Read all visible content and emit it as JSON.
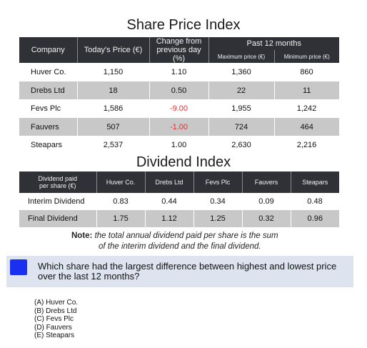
{
  "share_index": {
    "title": "Share Price Index",
    "headers": {
      "company": "Company",
      "today": "Today's Price (€)",
      "change_line1": "Change from",
      "change_line2": "previous day (%)",
      "past": "Past 12 months",
      "max": "Maximum price (€)",
      "min": "Minimum price (€)"
    },
    "rows": [
      {
        "company": "Huver Co.",
        "today": "1,150",
        "change": "1.10",
        "max": "1,360",
        "min": "860"
      },
      {
        "company": "Drebs Ltd",
        "today": "18",
        "change": "0.50",
        "max": "22",
        "min": "11"
      },
      {
        "company": "Fevs Plc",
        "today": "1,586",
        "change": "-9.00",
        "max": "1,955",
        "min": "1,242"
      },
      {
        "company": "Fauvers",
        "today": "507",
        "change": "-1.00",
        "max": "724",
        "min": "464"
      },
      {
        "company": "Steapars",
        "today": "2,537",
        "change": "1.00",
        "max": "2,630",
        "min": "2,216"
      }
    ]
  },
  "dividend_index": {
    "title": "Dividend Index",
    "headers": {
      "col0_line1": "Dividend paid",
      "col0_line2": "per share (€)",
      "companies": [
        "Huver Co.",
        "Drebs Ltd",
        "Fevs Plc",
        "Fauvers",
        "Steapars"
      ]
    },
    "rows": [
      {
        "label": "Interim Dividend",
        "values": [
          "0.83",
          "0.44",
          "0.34",
          "0.09",
          "0.48"
        ]
      },
      {
        "label": "Final Dividend",
        "values": [
          "1.75",
          "1.12",
          "1.25",
          "0.32",
          "0.96"
        ]
      }
    ]
  },
  "note": {
    "label": "Note:",
    "line1": "the total annual dividend paid per share is the sum",
    "line2": "of the interim dividend and the final dividend."
  },
  "question": {
    "marker_color": "#1b2ff0",
    "text": "Which share had the largest difference between highest and lowest price over the last 12 months?",
    "options": [
      "(A) Huver Co.",
      "(B) Drebs Ltd",
      "(C) Fevs Plc",
      "(D) Fauvers",
      "(E) Steapars"
    ]
  }
}
